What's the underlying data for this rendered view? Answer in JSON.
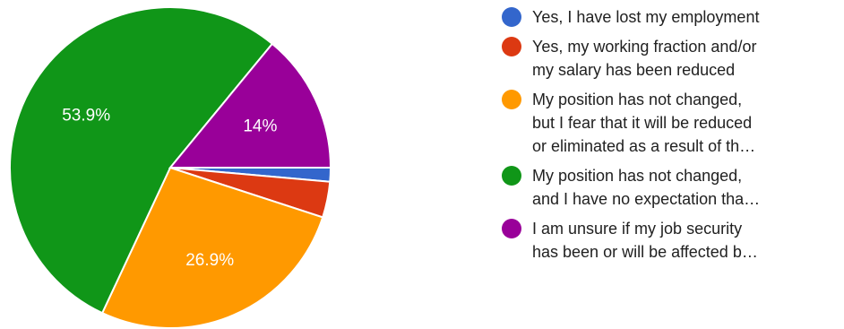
{
  "chart_data": {
    "type": "pie",
    "slices": [
      {
        "label": "Yes, I have lost my employment",
        "legend_lines": [
          "Yes, I have lost my employment"
        ],
        "value": 1.4,
        "color": "#3366cc",
        "label_text": ""
      },
      {
        "label": "Yes, my working fraction and/or my salary has been reduced",
        "legend_lines": [
          "Yes, my working fraction and/or",
          "my salary has been reduced"
        ],
        "value": 3.6,
        "color": "#dc3912",
        "label_text": ""
      },
      {
        "label": "My position has not changed, but I fear that it will be reduced or eliminated as a result of th…",
        "legend_lines": [
          "My position has not changed,",
          "but I fear that it will be reduced",
          "or eliminated as a result of th…"
        ],
        "value": 26.9,
        "color": "#ff9900",
        "label_text": "26.9%"
      },
      {
        "label": "My position has not changed, and I have no expectation tha…",
        "legend_lines": [
          "My position has not changed,",
          "and I have no expectation tha…"
        ],
        "value": 53.9,
        "color": "#109618",
        "label_text": "53.9%"
      },
      {
        "label": "I am unsure if my job security has been or will be affected b…",
        "legend_lines": [
          "I am unsure if my job security",
          "has been or will be affected b…"
        ],
        "value": 14.0,
        "color": "#990099",
        "label_text": "14%"
      }
    ]
  }
}
